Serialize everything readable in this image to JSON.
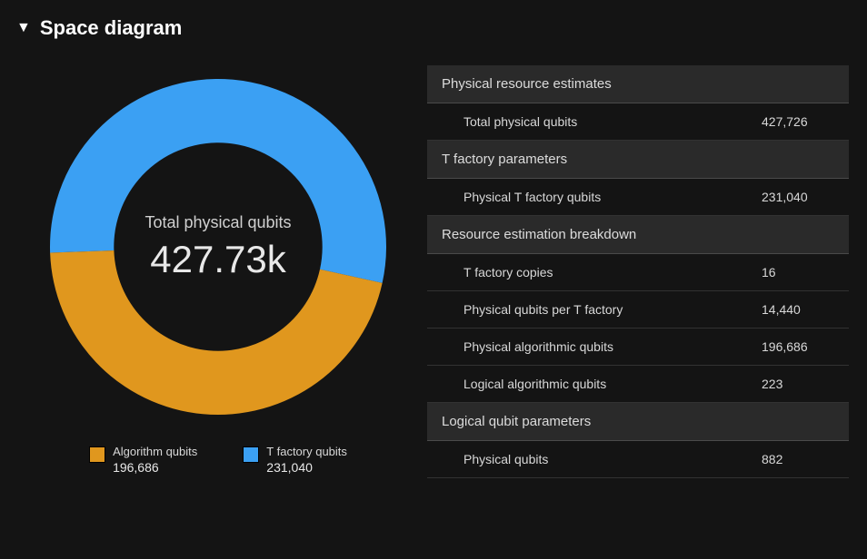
{
  "header": {
    "title": "Space diagram"
  },
  "chart": {
    "type": "donut",
    "center_label": "Total physical qubits",
    "center_value": "427.73k",
    "series": [
      {
        "name": "Algorithm qubits",
        "value": 196686,
        "value_str": "196,686",
        "color": "#e0971e"
      },
      {
        "name": "T factory qubits",
        "value": 231040,
        "value_str": "231,040",
        "color": "#3ba0f3"
      }
    ],
    "inner_radius_pct": 62,
    "background": "#141414",
    "center_label_fontsize": 18,
    "center_value_fontsize": 42
  },
  "table": {
    "sections": [
      {
        "title": "Physical resource estimates",
        "rows": [
          {
            "label": "Total physical qubits",
            "value": "427,726"
          }
        ]
      },
      {
        "title": "T factory parameters",
        "rows": [
          {
            "label": "Physical T factory qubits",
            "value": "231,040"
          }
        ]
      },
      {
        "title": "Resource estimation breakdown",
        "rows": [
          {
            "label": "T factory copies",
            "value": "16"
          },
          {
            "label": "Physical qubits per T factory",
            "value": "14,440"
          },
          {
            "label": "Physical algorithmic qubits",
            "value": "196,686"
          },
          {
            "label": "Logical algorithmic qubits",
            "value": "223"
          }
        ]
      },
      {
        "title": "Logical qubit parameters",
        "rows": [
          {
            "label": "Physical qubits",
            "value": "882"
          }
        ]
      }
    ]
  }
}
